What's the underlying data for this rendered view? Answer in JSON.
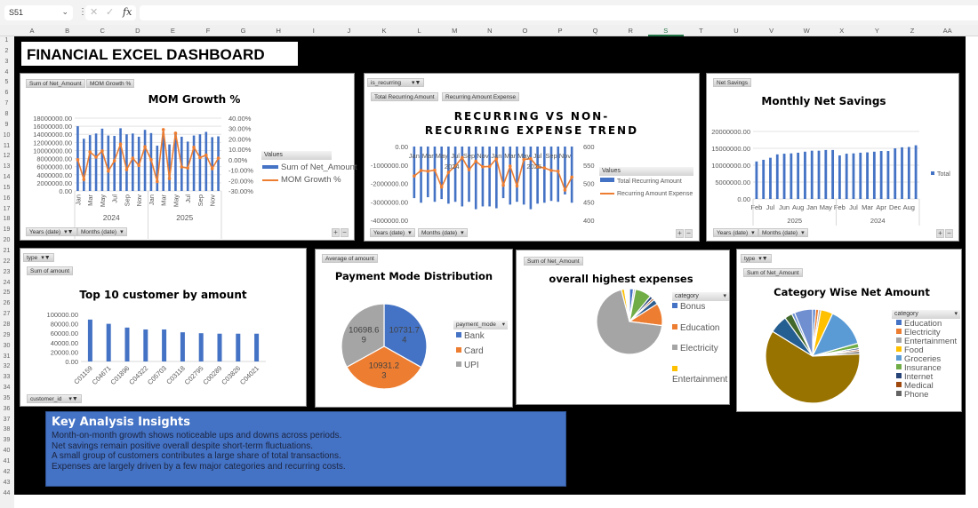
{
  "toolbar": {
    "name_box": "S51",
    "cancel_icon": "✕",
    "enter_icon": "✓",
    "fx_label": "fx",
    "formula": ""
  },
  "columns": [
    "A",
    "B",
    "C",
    "D",
    "E",
    "F",
    "G",
    "H",
    "I",
    "J",
    "K",
    "L",
    "M",
    "N",
    "O",
    "P",
    "Q",
    "R",
    "S",
    "T",
    "U",
    "V",
    "W",
    "X",
    "Y",
    "Z",
    "AA"
  ],
  "selected_column": "S",
  "rows": [
    "1",
    "2",
    "3",
    "4",
    "5",
    "6",
    "7",
    "8",
    "9",
    "10",
    "11",
    "12",
    "13",
    "14",
    "15",
    "16",
    "17",
    "18",
    "19",
    "20",
    "21",
    "22",
    "23",
    "24",
    "25",
    "26",
    "27",
    "28",
    "29",
    "30",
    "31",
    "32",
    "33",
    "34",
    "35",
    "36",
    "37",
    "38",
    "39",
    "40",
    "41",
    "42",
    "43",
    "44"
  ],
  "dashboard_title": "FINANCIAL EXCEL DASHBOARD",
  "pivot": {
    "p1": {
      "values": [
        "Sum of Net_Amount",
        "MOM Growth %"
      ],
      "axis": [
        "Years (date)",
        "Months (date)"
      ],
      "legend_header": "Values"
    },
    "p2": {
      "filter": "is_recurring",
      "values": [
        "Total Recurring Amount",
        "Recurring Amount Expense"
      ],
      "axis": [
        "Years (date)",
        "Months (date)"
      ],
      "legend_header": "Values"
    },
    "p3": {
      "values": [
        "Net Savings"
      ],
      "axis": [
        "Years (date)",
        "Months (date)"
      ]
    },
    "p4": {
      "filter": "type",
      "values": [
        "Sum of amount"
      ],
      "axis": [
        "customer_id"
      ]
    },
    "p5": {
      "values": [
        "Average of amount"
      ],
      "legend_header": "payment_mode"
    },
    "p6": {
      "values": [
        "Sum of Net_Amount"
      ],
      "legend_header": "category"
    },
    "p7": {
      "filter": "type",
      "values": [
        "Sum of Net_Amount"
      ],
      "legend_header": "category"
    },
    "plus": "+",
    "minus": "−"
  },
  "chart_data": [
    {
      "type": "bar+line",
      "title": "MOM Growth %",
      "months": [
        "Jan",
        "Feb",
        "Mar",
        "Apr",
        "May",
        "Jun",
        "Jul",
        "Aug",
        "Sep",
        "Oct",
        "Nov",
        "Dec",
        "Jan",
        "Feb",
        "Mar",
        "Apr",
        "May",
        "Jun",
        "Jul",
        "Aug",
        "Sep",
        "Oct",
        "Nov",
        "Dec"
      ],
      "years": [
        "2024",
        "2025"
      ],
      "series": [
        {
          "name": "Sum of Net_Amount",
          "axis": "left",
          "color": "#4472c4",
          "values": [
            16000000,
            12900000,
            13800000,
            14200000,
            15400000,
            13700000,
            13600000,
            15500000,
            14000000,
            14200000,
            13400000,
            15100000,
            14300000,
            11200000,
            14600000,
            11500000,
            14300000,
            13400000,
            12200000,
            13700000,
            14000000,
            14600000,
            13300000,
            13500000
          ]
        },
        {
          "name": "MOM Growth %",
          "axis": "right",
          "color": "#ed7d31",
          "values": [
            0,
            -19,
            7.5,
            2.5,
            8.5,
            -11,
            -1,
            15,
            -9.5,
            1.5,
            -5.5,
            12.5,
            0,
            -21,
            29,
            -18,
            25.5,
            -7,
            -8,
            12,
            2,
            4.5,
            -8.5,
            1.5
          ]
        }
      ],
      "ylim": [
        0,
        18000000
      ],
      "ystep": 2000000,
      "y2lim": [
        -30,
        40
      ],
      "y2step": 10,
      "grid": true,
      "legend": "right"
    },
    {
      "type": "bar+line",
      "title": "RECURRING VS NON-RECURRING EXPENSE TREND",
      "months": [
        "Jan",
        "Feb",
        "Mar",
        "Apr",
        "May",
        "Jun",
        "Jul",
        "Aug",
        "Sep",
        "Oct",
        "Nov",
        "Dec",
        "Jan",
        "Feb",
        "Mar",
        "Apr",
        "May",
        "Jun",
        "Jul",
        "Aug",
        "Sep",
        "Oct",
        "Nov",
        "Dec"
      ],
      "years": [
        "2024",
        "2025"
      ],
      "series": [
        {
          "name": "Total Recurring Amount",
          "axis": "left",
          "color": "#4472c4",
          "values": [
            -2800000,
            -3050000,
            -2750000,
            -3000000,
            -2850000,
            -3100000,
            -3000000,
            -3250000,
            -3000000,
            -3400000,
            -3250000,
            -3250000,
            -3350000,
            -2800000,
            -3150000,
            -3000000,
            -3150000,
            -3400000,
            -3100000,
            -3050000,
            -2950000,
            -3000000,
            -2600000,
            -3050000
          ]
        },
        {
          "name": "Recurring Amount Expense",
          "axis": "right",
          "color": "#ed7d31",
          "values": [
            520,
            535,
            533,
            536,
            490,
            530,
            547,
            570,
            537,
            560,
            545,
            546,
            567,
            495,
            547,
            493,
            565,
            567,
            545,
            542,
            535,
            533,
            482,
            517
          ]
        }
      ],
      "ylim": [
        -4000000,
        0
      ],
      "ystep": 1000000,
      "y2lim": [
        400,
        600
      ],
      "y2step": 50,
      "legend": "right"
    },
    {
      "type": "bar",
      "title": "Monthly Net Savings",
      "category_labels": [
        "Feb",
        "Jul",
        "Jun",
        "Aug",
        "Jan",
        "May",
        "Feb",
        "Jul",
        "Mar",
        "Apr",
        "Dec",
        "Aug"
      ],
      "years": [
        "2025",
        "2024"
      ],
      "series": [
        {
          "name": "Total",
          "color": "#4472c4",
          "values": [
            11100000,
            11600000,
            12200000,
            13200000,
            13400000,
            13500000,
            13700000,
            14000000,
            14300000,
            14300000,
            14500000,
            14500000,
            12900000,
            13400000,
            13500000,
            13700000,
            13800000,
            14000000,
            14200000,
            14200000,
            15000000,
            15300000,
            15400000,
            15900000
          ]
        }
      ],
      "ylim": [
        0,
        20000000
      ],
      "ystep": 5000000,
      "grid": true,
      "legend": "right"
    },
    {
      "type": "bar",
      "title": "Top 10 customer by amount",
      "categories": [
        "C01159",
        "C04671",
        "C01896",
        "C04322",
        "C05703",
        "C03118",
        "C02795",
        "C00289",
        "C03826",
        "C04021"
      ],
      "values": [
        89000,
        80000,
        72000,
        68000,
        68000,
        62000,
        60000,
        59000,
        59000,
        59000
      ],
      "color": "#4472c4",
      "ylim": [
        0,
        100000
      ],
      "ystep": 20000
    },
    {
      "type": "pie",
      "title": "Payment Mode Distribution",
      "slices": [
        {
          "label": "Bank",
          "value": 10731.74,
          "display": "10731.74",
          "color": "#4472c4"
        },
        {
          "label": "Card",
          "value": 10931.23,
          "display": "10931.23",
          "color": "#ed7d31"
        },
        {
          "label": "UPI",
          "value": 10698.69,
          "display": "10698.69",
          "color": "#a5a5a5"
        }
      ],
      "legend": "right"
    },
    {
      "type": "pie",
      "title": "overall highest expenses",
      "slices": [
        {
          "label": "Bonus",
          "value": 2,
          "color": "#4472c4"
        },
        {
          "value": 1,
          "color": "#c9c9c9"
        },
        {
          "value": 8,
          "color": "#70ad47"
        },
        {
          "value": 1.5,
          "color": "#264478"
        },
        {
          "value": 1,
          "color": "#9e480e"
        },
        {
          "value": 2.5,
          "color": "#2e5d8f"
        },
        {
          "label": "Education",
          "value": 11,
          "color": "#ed7d31"
        },
        {
          "label": "Electricity",
          "value": 69,
          "color": "#a5a5a5"
        },
        {
          "label": "Entertainment",
          "value": 1.5,
          "color": "#ffc000"
        },
        {
          "value": 2.5,
          "color": "#ffffff"
        }
      ],
      "legend_entries": [
        "Bonus",
        "Education",
        "Electricity",
        "Entertainment"
      ],
      "legend": "right"
    },
    {
      "type": "pie",
      "title": "Category Wise Net Amount",
      "slices": [
        {
          "label": "Education",
          "value": 1,
          "color": "#4472c4"
        },
        {
          "label": "Electricity",
          "value": 1,
          "color": "#ed7d31"
        },
        {
          "label": "Entertainment",
          "value": 0.7,
          "color": "#a5a5a5"
        },
        {
          "label": "Food",
          "value": 4,
          "color": "#ffc000"
        },
        {
          "label": "Groceries",
          "value": 13,
          "color": "#5b9bd5"
        },
        {
          "label": "Insurance",
          "value": 1.5,
          "color": "#70ad47"
        },
        {
          "label": "Internet",
          "value": 0.6,
          "color": "#264478"
        },
        {
          "label": "Medical",
          "value": 0.6,
          "color": "#9e480e"
        },
        {
          "label": "Phone",
          "value": 0.8,
          "color": "#636363"
        },
        {
          "value": 57,
          "color": "#997300"
        },
        {
          "value": 6,
          "color": "#255e91"
        },
        {
          "value": 2.5,
          "color": "#43682b"
        },
        {
          "value": 1,
          "color": "#698ed0"
        },
        {
          "value": 6,
          "color": "#6f8fd0"
        }
      ],
      "legend_entries": [
        "Education",
        "Electricity",
        "Entertainment",
        "Food",
        "Groceries",
        "Insurance",
        "Internet",
        "Medical",
        "Phone"
      ],
      "legend": "right"
    }
  ],
  "insights": {
    "title": "Key Analysis Insights",
    "lines": [
      "Month-on-month growth shows noticeable ups and downs across periods.",
      "Net savings remain positive overall despite short-term fluctuations.",
      "A small group of customers contributes a large share of total transactions.",
      "Expenses are largely driven by a few major categories and recurring costs."
    ]
  }
}
